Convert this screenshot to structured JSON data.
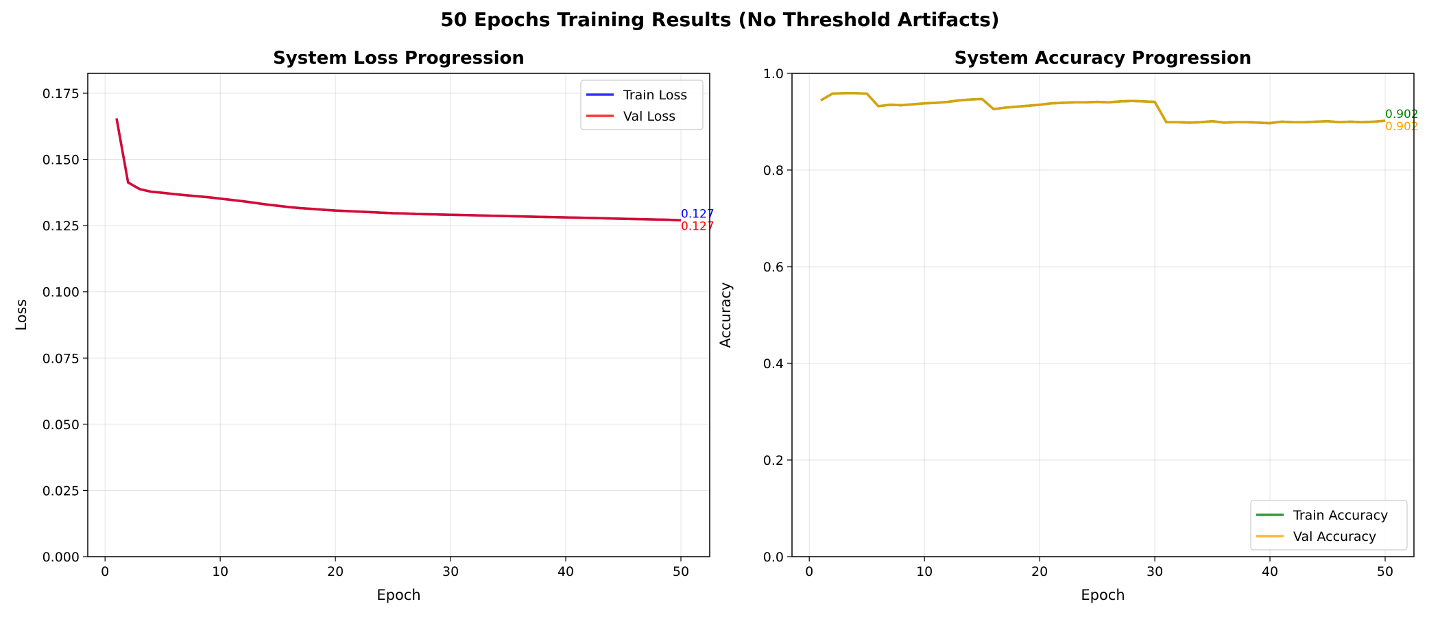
{
  "suptitle": "50 Epochs Training Results (No Threshold Artifacts)",
  "chart_data": [
    {
      "type": "line",
      "title": "System Loss Progression",
      "xlabel": "Epoch",
      "ylabel": "Loss",
      "xlim": [
        -1.5,
        52.5
      ],
      "ylim": [
        0,
        0.1825
      ],
      "xticks": [
        0,
        10,
        20,
        30,
        40,
        50
      ],
      "yticks": [
        0.0,
        0.025,
        0.05,
        0.075,
        0.1,
        0.125,
        0.15,
        0.175
      ],
      "ytick_decimals": 3,
      "grid": true,
      "legend_position": "top-right",
      "x": [
        1,
        2,
        3,
        4,
        5,
        6,
        7,
        8,
        9,
        10,
        11,
        12,
        13,
        14,
        15,
        16,
        17,
        18,
        19,
        20,
        21,
        22,
        23,
        24,
        25,
        26,
        27,
        28,
        29,
        30,
        31,
        32,
        33,
        34,
        35,
        36,
        37,
        38,
        39,
        40,
        41,
        42,
        43,
        44,
        45,
        46,
        47,
        48,
        49,
        50
      ],
      "series": [
        {
          "name": "Train Loss",
          "color": "#0000ff",
          "values": [
            0.1655,
            0.1413,
            0.1388,
            0.1378,
            0.1374,
            0.1369,
            0.1365,
            0.1361,
            0.1357,
            0.1352,
            0.1347,
            0.1342,
            0.1336,
            0.133,
            0.1325,
            0.132,
            0.1316,
            0.1313,
            0.131,
            0.1307,
            0.1305,
            0.1303,
            0.1301,
            0.1299,
            0.1297,
            0.1296,
            0.1294,
            0.1293,
            0.1292,
            0.1291,
            0.129,
            0.1289,
            0.1288,
            0.1287,
            0.1286,
            0.1285,
            0.1284,
            0.1283,
            0.1282,
            0.1281,
            0.128,
            0.1279,
            0.1278,
            0.1277,
            0.1276,
            0.1275,
            0.1274,
            0.1273,
            0.1272,
            0.127
          ],
          "end_label": "0.127"
        },
        {
          "name": "Val Loss",
          "color": "#ff0000",
          "values": [
            0.1655,
            0.1413,
            0.1388,
            0.1378,
            0.1374,
            0.1369,
            0.1365,
            0.1361,
            0.1357,
            0.1352,
            0.1347,
            0.1342,
            0.1336,
            0.133,
            0.1325,
            0.132,
            0.1316,
            0.1313,
            0.131,
            0.1307,
            0.1305,
            0.1303,
            0.1301,
            0.1299,
            0.1297,
            0.1296,
            0.1294,
            0.1293,
            0.1292,
            0.1291,
            0.129,
            0.1289,
            0.1288,
            0.1287,
            0.1286,
            0.1285,
            0.1284,
            0.1283,
            0.1282,
            0.1281,
            0.128,
            0.1279,
            0.1278,
            0.1277,
            0.1276,
            0.1275,
            0.1274,
            0.1273,
            0.1272,
            0.127
          ],
          "end_label": "0.127"
        }
      ]
    },
    {
      "type": "line",
      "title": "System Accuracy Progression",
      "xlabel": "Epoch",
      "ylabel": "Accuracy",
      "xlim": [
        -1.5,
        52.5
      ],
      "ylim": [
        0,
        1.0
      ],
      "xticks": [
        0,
        10,
        20,
        30,
        40,
        50
      ],
      "yticks": [
        0.0,
        0.2,
        0.4,
        0.6,
        0.8,
        1.0
      ],
      "ytick_decimals": 1,
      "grid": true,
      "legend_position": "bottom-right",
      "x": [
        1,
        2,
        3,
        4,
        5,
        6,
        7,
        8,
        9,
        10,
        11,
        12,
        13,
        14,
        15,
        16,
        17,
        18,
        19,
        20,
        21,
        22,
        23,
        24,
        25,
        26,
        27,
        28,
        29,
        30,
        31,
        32,
        33,
        34,
        35,
        36,
        37,
        38,
        39,
        40,
        41,
        42,
        43,
        44,
        45,
        46,
        47,
        48,
        49,
        50
      ],
      "series": [
        {
          "name": "Train Accuracy",
          "color": "#008000",
          "values": [
            0.944,
            0.958,
            0.959,
            0.959,
            0.958,
            0.932,
            0.935,
            0.934,
            0.936,
            0.938,
            0.939,
            0.941,
            0.944,
            0.946,
            0.947,
            0.926,
            0.929,
            0.931,
            0.933,
            0.935,
            0.938,
            0.939,
            0.94,
            0.94,
            0.941,
            0.94,
            0.942,
            0.943,
            0.942,
            0.941,
            0.899,
            0.899,
            0.898,
            0.899,
            0.901,
            0.898,
            0.899,
            0.899,
            0.898,
            0.897,
            0.9,
            0.899,
            0.899,
            0.9,
            0.901,
            0.899,
            0.9,
            0.899,
            0.9,
            0.902
          ],
          "end_label": "0.902"
        },
        {
          "name": "Val Accuracy",
          "color": "#ffa500",
          "values": [
            0.944,
            0.958,
            0.959,
            0.959,
            0.958,
            0.932,
            0.935,
            0.934,
            0.936,
            0.938,
            0.939,
            0.941,
            0.944,
            0.946,
            0.947,
            0.926,
            0.929,
            0.931,
            0.933,
            0.935,
            0.938,
            0.939,
            0.94,
            0.94,
            0.941,
            0.94,
            0.942,
            0.943,
            0.942,
            0.941,
            0.899,
            0.899,
            0.898,
            0.899,
            0.901,
            0.898,
            0.899,
            0.899,
            0.898,
            0.897,
            0.9,
            0.899,
            0.899,
            0.9,
            0.901,
            0.899,
            0.9,
            0.899,
            0.9,
            0.902
          ],
          "end_label": "0.902"
        }
      ]
    }
  ]
}
